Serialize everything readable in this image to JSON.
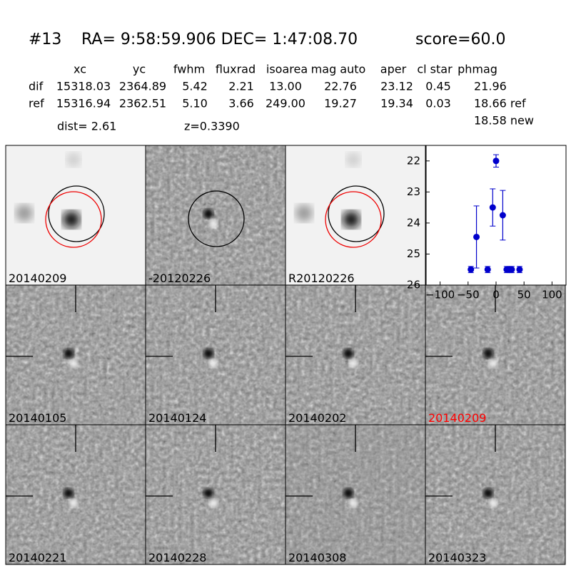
{
  "header": {
    "id": "#13",
    "coords": "RA= 9:58:59.906 DEC= 1:47:08.70",
    "score": "score=60.0"
  },
  "table": {
    "columns": [
      "xc",
      "yc",
      "fwhm",
      "fluxrad",
      "isoarea",
      "mag auto",
      "aper",
      "cl star",
      "phmag"
    ],
    "rows": [
      [
        "dif",
        "15318.03",
        "2364.89",
        "5.42",
        "2.21",
        "13.00",
        "22.76",
        "23.12",
        "0.45",
        "21.96"
      ],
      [
        "ref",
        "15316.94",
        "2362.51",
        "5.10",
        "3.66",
        "249.00",
        "19.27",
        "19.34",
        "0.03",
        "18.66 ref"
      ]
    ],
    "extra": "18.58 new"
  },
  "dist": "dist=  2.61",
  "z": "z=0.3390",
  "stamps": [
    "20140209",
    "-20120226",
    "R20120226",
    "20140105",
    "20140124",
    "20140202",
    "20140209",
    "20140221",
    "20140228",
    "20140308",
    "20140323"
  ],
  "chart_data": {
    "type": "scatter",
    "color": "#0000cc",
    "y_inverted": true,
    "x": [
      -45,
      -35,
      -15,
      -6,
      0,
      12,
      19,
      24,
      28,
      42
    ],
    "values": [
      25.5,
      24.45,
      25.5,
      23.5,
      22.0,
      23.75,
      25.5,
      25.5,
      25.5,
      25.5
    ],
    "errors": [
      0.1,
      1.0,
      0.1,
      0.6,
      0.2,
      0.8,
      0.1,
      0.1,
      0.1,
      0.1
    ],
    "xlim": [
      -125,
      125
    ],
    "ylim": [
      21.5,
      26
    ],
    "xticks": [
      {
        "value": -100,
        "label": "−100"
      },
      {
        "value": -50,
        "label": "−50"
      },
      0,
      50,
      100
    ],
    "yticks": [
      22,
      23,
      24,
      25,
      26
    ]
  }
}
